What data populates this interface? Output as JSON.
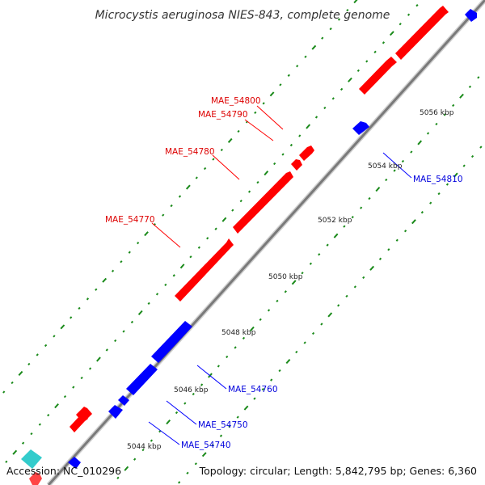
{
  "title": "Microcystis aeruginosa NIES-843, complete genome",
  "accession": "Accession: NC_010296",
  "summary": "Topology: circular; Length: 5,842,795 bp; Genes: 6,360",
  "colors": {
    "forward": "#ff0000",
    "reverse": "#0000ff",
    "extra": "#33cccc",
    "backbone": "#888888",
    "dots": "#1a8a1a"
  },
  "ticks": [
    {
      "label": "5044 kbp"
    },
    {
      "label": "5046 kbp"
    },
    {
      "label": "5048 kbp"
    },
    {
      "label": "5050 kbp"
    },
    {
      "label": "5052 kbp"
    },
    {
      "label": "5054 kbp"
    },
    {
      "label": "5056 kbp"
    }
  ],
  "genes": [
    {
      "label": "MAE_54800",
      "strand": "forward"
    },
    {
      "label": "MAE_54790",
      "strand": "forward"
    },
    {
      "label": "MAE_54780",
      "strand": "forward"
    },
    {
      "label": "MAE_54770",
      "strand": "forward"
    },
    {
      "label": "MAE_54810",
      "strand": "reverse"
    },
    {
      "label": "MAE_54760",
      "strand": "reverse"
    },
    {
      "label": "MAE_54750",
      "strand": "reverse"
    },
    {
      "label": "MAE_54740",
      "strand": "reverse"
    }
  ]
}
